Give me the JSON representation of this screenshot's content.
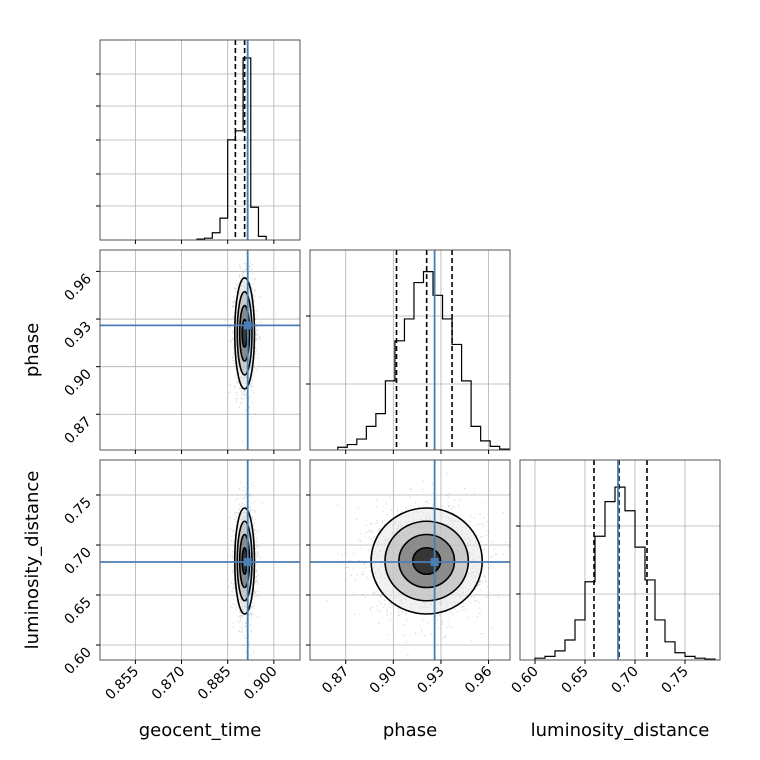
{
  "chart_data": {
    "type": "corner",
    "parameters": [
      "geocent_time",
      "phase",
      "luminosity_distance"
    ],
    "truth": {
      "geocent_time": 0.8915,
      "phase": 0.926,
      "luminosity_distance": 0.683
    },
    "truth_color": "#4a7fb5",
    "quantiles": {
      "geocent_time": [
        0.8875,
        0.8905,
        0.8915
      ],
      "phase": [
        0.902,
        0.921,
        0.937
      ],
      "luminosity_distance": [
        0.659,
        0.684,
        0.712
      ]
    },
    "ranges": {
      "geocent_time": [
        0.8435,
        0.9085
      ],
      "phase": [
        0.8475,
        0.9735
      ],
      "luminosity_distance": [
        0.585,
        0.785
      ]
    },
    "ticks": {
      "geocent_time": [
        "0.855",
        "0.870",
        "0.885",
        "0.900"
      ],
      "phase": [
        "0.87",
        "0.90",
        "0.93",
        "0.96"
      ],
      "luminosity_distance": [
        "0.60",
        "0.65",
        "0.70",
        "0.75"
      ]
    },
    "histograms": {
      "geocent_time": {
        "edges": [
          0.875,
          0.8775,
          0.88,
          0.8825,
          0.885,
          0.8875,
          0.89,
          0.8925,
          0.895,
          0.8975
        ],
        "counts": [
          0.005,
          0.01,
          0.04,
          0.12,
          0.55,
          0.6,
          1.0,
          0.18,
          0.02
        ]
      },
      "phase": {
        "edges": [
          0.865,
          0.871,
          0.877,
          0.883,
          0.889,
          0.895,
          0.901,
          0.907,
          0.913,
          0.919,
          0.925,
          0.931,
          0.937,
          0.943,
          0.949,
          0.955,
          0.961,
          0.967,
          0.973
        ],
        "counts": [
          0.015,
          0.03,
          0.06,
          0.13,
          0.2,
          0.38,
          0.6,
          0.72,
          0.92,
          0.98,
          0.85,
          0.72,
          0.58,
          0.38,
          0.13,
          0.05,
          0.02,
          0.005
        ]
      },
      "luminosity_distance": {
        "edges": [
          0.6,
          0.61,
          0.62,
          0.63,
          0.64,
          0.65,
          0.66,
          0.67,
          0.68,
          0.69,
          0.7,
          0.71,
          0.72,
          0.73,
          0.74,
          0.75,
          0.76,
          0.77,
          0.78
        ],
        "counts": [
          0.01,
          0.02,
          0.05,
          0.11,
          0.22,
          0.43,
          0.68,
          0.87,
          0.95,
          0.82,
          0.62,
          0.44,
          0.22,
          0.1,
          0.04,
          0.02,
          0.01,
          0.005
        ]
      }
    },
    "grid": true
  }
}
